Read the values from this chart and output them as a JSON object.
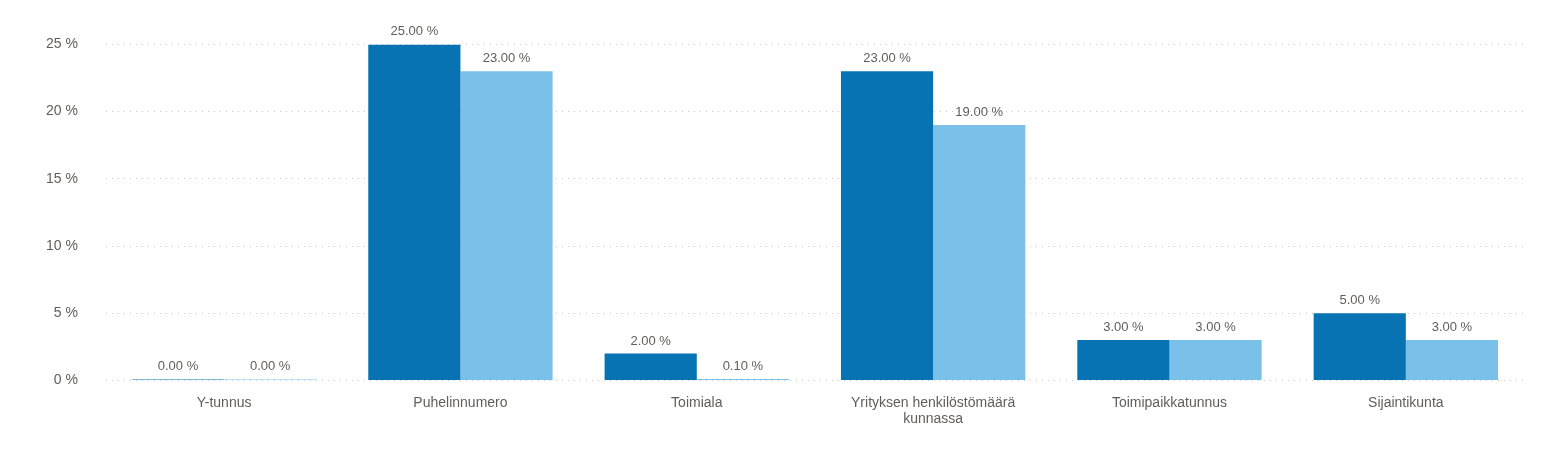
{
  "chart_data": {
    "type": "bar",
    "categories": [
      "Y-tunnus",
      "Puhelinnumero",
      "Toimiala",
      "Yrityksen henkilöstömäärä kunnassa",
      "Toimipaikkatunnus",
      "Sijaintikunta"
    ],
    "series": [
      {
        "color": "#0773b3",
        "values": [
          0,
          25,
          2,
          23,
          3,
          5
        ],
        "value_labels": [
          "0.00 %",
          "25.00 %",
          "2.00 %",
          "23.00 %",
          "3.00 %",
          "5.00 %"
        ]
      },
      {
        "color": "#7ac1ea",
        "values": [
          0,
          23,
          0.1,
          19,
          3,
          3
        ],
        "value_labels": [
          "0.00 %",
          "23.00 %",
          "0.10 %",
          "19.00 %",
          "3.00 %",
          "3.00 %"
        ]
      }
    ],
    "ylim": [
      0,
      25
    ],
    "yticks": [
      {
        "value": 0,
        "label": "0 %"
      },
      {
        "value": 5,
        "label": "5 %"
      },
      {
        "value": 10,
        "label": "10 %"
      },
      {
        "value": 15,
        "label": "15 %"
      },
      {
        "value": 20,
        "label": "20 %"
      },
      {
        "value": 25,
        "label": "25 %"
      }
    ],
    "grid": "y",
    "legend": false
  }
}
